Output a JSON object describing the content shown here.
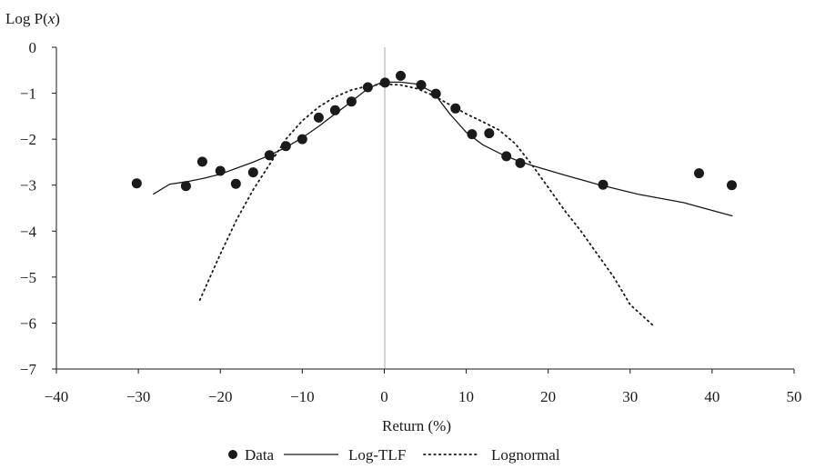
{
  "chart_data": {
    "type": "scatter",
    "ylabel_parts": [
      "Log P(",
      "x",
      ")"
    ],
    "xlabel": "Return (%)",
    "xlim": [
      -40,
      50
    ],
    "ylim": [
      -7,
      0
    ],
    "x_ticks": [
      -40,
      -30,
      -20,
      -10,
      0,
      10,
      20,
      30,
      40,
      50
    ],
    "y_ticks": [
      0,
      -1,
      -2,
      -3,
      -4,
      -5,
      -6,
      -7
    ],
    "x_tick_labels": [
      "−40",
      "−30",
      "−20",
      "−10",
      "0",
      "10",
      "20",
      "30",
      "40",
      "50"
    ],
    "y_tick_labels": [
      "0",
      "−1",
      "−2",
      "−3",
      "−4",
      "−5",
      "−6",
      "−7"
    ],
    "grid": false,
    "zero_line": true,
    "legend_position": "bottom",
    "series": [
      {
        "name": "Data",
        "style": "markers",
        "x": [
          -30.2,
          -24.2,
          -22.2,
          -20.0,
          -18.1,
          -16.0,
          -14.0,
          -12.0,
          -10.0,
          -8.0,
          -6.0,
          -4.0,
          -2.0,
          0.1,
          2.0,
          4.5,
          6.3,
          8.7,
          10.7,
          12.8,
          14.9,
          16.6,
          26.7,
          38.4,
          42.4
        ],
        "y": [
          -2.96,
          -3.02,
          -2.49,
          -2.69,
          -2.97,
          -2.72,
          -2.35,
          -2.15,
          -2.0,
          -1.53,
          -1.37,
          -1.18,
          -0.87,
          -0.77,
          -0.62,
          -0.82,
          -1.01,
          -1.33,
          -1.89,
          -1.87,
          -2.37,
          -2.52,
          -2.99,
          -2.74,
          -3.0
        ]
      },
      {
        "name": "Log-TLF",
        "style": "solid",
        "x": [
          -28.2,
          -26.2,
          -24.0,
          -22.0,
          -20.0,
          -18.0,
          -16.0,
          -14.0,
          -12.0,
          -10.0,
          -8.0,
          -6.0,
          -4.0,
          -2.0,
          -0.5,
          0.0,
          2.0,
          4.0,
          6.0,
          8.0,
          10.0,
          12.0,
          14.0,
          16.0,
          18.0,
          22.0,
          26.0,
          31.0,
          36.5,
          42.5
        ],
        "y": [
          -3.2,
          -2.98,
          -2.92,
          -2.85,
          -2.76,
          -2.63,
          -2.5,
          -2.35,
          -2.18,
          -1.97,
          -1.72,
          -1.45,
          -1.18,
          -0.9,
          -0.78,
          -0.76,
          -0.76,
          -0.8,
          -0.98,
          -1.45,
          -1.85,
          -2.12,
          -2.3,
          -2.45,
          -2.57,
          -2.78,
          -2.98,
          -3.2,
          -3.38,
          -3.67
        ]
      },
      {
        "name": "Lognormal",
        "style": "dotted",
        "x": [
          -22.5,
          -20.0,
          -18.0,
          -16.0,
          -14.0,
          -12.0,
          -10.0,
          -8.0,
          -6.0,
          -4.0,
          -2.0,
          0.0,
          2.0,
          4.0,
          6.0,
          8.0,
          10.0,
          12.0,
          14.0,
          16.0,
          18.0,
          20.0,
          22.0,
          24.0,
          26.0,
          28.0,
          30.0,
          32.8
        ],
        "y": [
          -5.5,
          -4.5,
          -3.75,
          -3.1,
          -2.55,
          -2.0,
          -1.6,
          -1.3,
          -1.08,
          -0.93,
          -0.84,
          -0.8,
          -0.82,
          -0.9,
          -1.05,
          -1.25,
          -1.45,
          -1.62,
          -1.8,
          -2.1,
          -2.55,
          -3.05,
          -3.55,
          -4.0,
          -4.5,
          -5.0,
          -5.6,
          -6.05
        ]
      }
    ]
  }
}
